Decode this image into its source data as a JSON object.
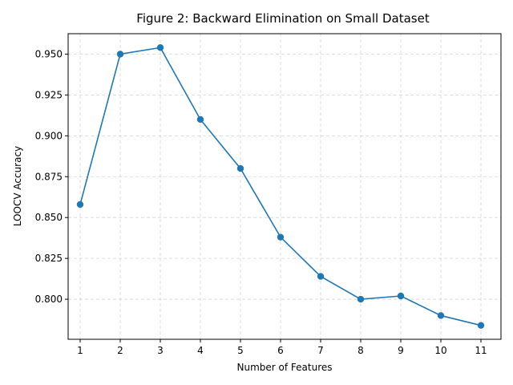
{
  "chart_data": {
    "type": "line",
    "title": "Figure 2: Backward Elimination on Small Dataset",
    "xlabel": "Number of Features",
    "ylabel": "LOOCV Accuracy",
    "x": [
      1,
      2,
      3,
      4,
      5,
      6,
      7,
      8,
      9,
      10,
      11
    ],
    "series": [
      {
        "values": [
          0.858,
          0.95,
          0.954,
          0.91,
          0.88,
          0.838,
          0.814,
          0.8,
          0.802,
          0.79,
          0.784
        ]
      }
    ],
    "xticks": [
      "1",
      "2",
      "3",
      "4",
      "5",
      "6",
      "7",
      "8",
      "9",
      "10",
      "11"
    ],
    "yticks": [
      0.8,
      0.825,
      0.85,
      0.875,
      0.9,
      0.925,
      0.95
    ],
    "ytick_labels": [
      "0.800",
      "0.825",
      "0.850",
      "0.875",
      "0.900",
      "0.925",
      "0.950"
    ],
    "xlim": [
      0.7,
      11.5
    ],
    "ylim": [
      0.7755,
      0.9625
    ],
    "grid": true,
    "markers": true,
    "color": "#1f77b4"
  }
}
